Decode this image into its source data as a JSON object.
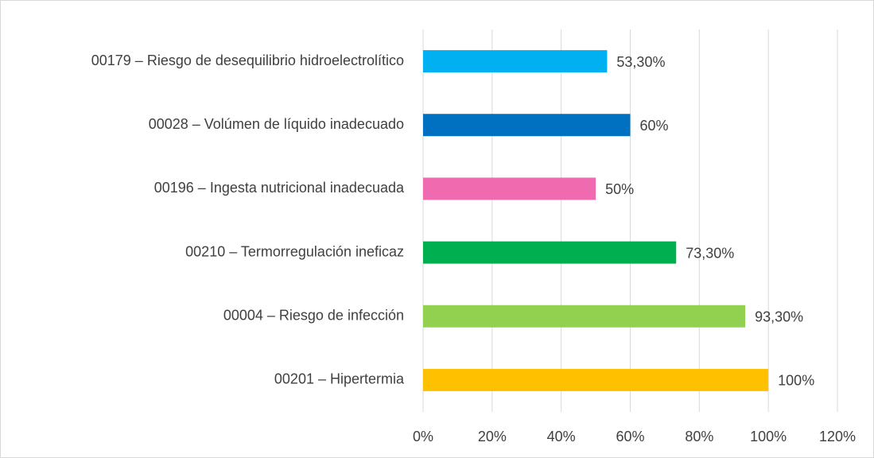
{
  "chart_data": {
    "type": "barh",
    "categories": [
      "00179 – Riesgo de desequilibrio hidroelectrolítico",
      "00028 – Volúmen de líquido inadecuado",
      "00196 – Ingesta nutricional inadecuada",
      "00210 – Termorregulación ineficaz",
      "00004 – Riesgo de infección",
      "00201 – Hipertermia"
    ],
    "values": [
      53.3,
      60,
      50,
      73.3,
      93.3,
      100
    ],
    "value_labels": [
      "53,30%",
      "60%",
      "50%",
      "73,30%",
      "93,30%",
      "100%"
    ],
    "colors": [
      "#00b0f0",
      "#0070c0",
      "#f06aaf",
      "#00b050",
      "#92d050",
      "#ffc000"
    ],
    "xlim": [
      0,
      120
    ],
    "xticks": [
      {
        "value": 0,
        "label": "0%"
      },
      {
        "value": 20,
        "label": "20%"
      },
      {
        "value": 40,
        "label": "40%"
      },
      {
        "value": 60,
        "label": "60%"
      },
      {
        "value": 80,
        "label": "80%"
      },
      {
        "value": 100,
        "label": "100%"
      },
      {
        "value": 120,
        "label": "120%"
      }
    ],
    "grid": true
  }
}
